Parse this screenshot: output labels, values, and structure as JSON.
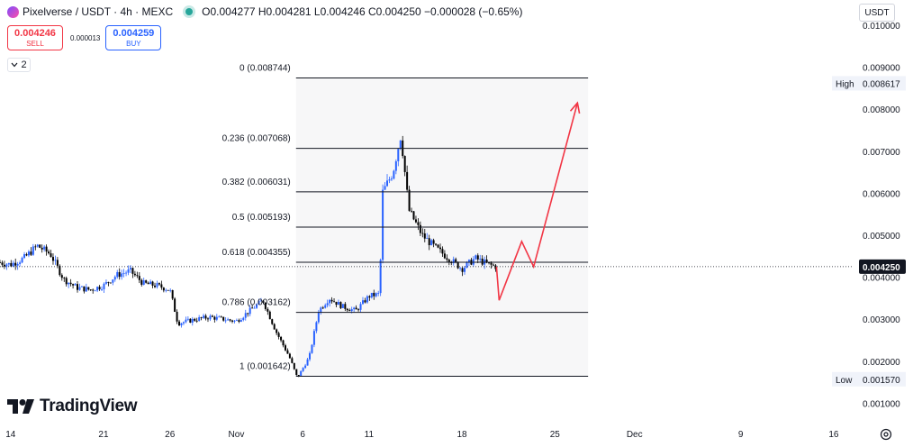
{
  "header": {
    "symbol": "Pixelverse / USDT · 4h · MEXC",
    "ohlc": "O0.004277 H0.004281 L0.004246 C0.004250 −0.000028 (−0.65%)"
  },
  "trade": {
    "sell_price": "0.004246",
    "sell_label": "SELL",
    "spread": "0.000013",
    "buy_price": "0.004259",
    "buy_label": "BUY"
  },
  "indicators_count": "2",
  "currency": "USDT",
  "branding": "TradingView",
  "chart_data": {
    "type": "candlestick",
    "y_axis": {
      "range": [
        0.0006,
        0.0106
      ],
      "ticks": [
        "0.010000",
        "0.009000",
        "0.008000",
        "0.007000",
        "0.006000",
        "0.005000",
        "0.004000",
        "0.003000",
        "0.002000",
        "0.001000"
      ],
      "tick_values": [
        0.01,
        0.009,
        0.008,
        0.007,
        0.006,
        0.005,
        0.004,
        0.003,
        0.002,
        0.001
      ]
    },
    "x_axis": {
      "labels": [
        {
          "label": "14",
          "day": 14
        },
        {
          "label": "21",
          "day": 21
        },
        {
          "label": "26",
          "day": 26
        },
        {
          "label": "Nov",
          "day": 31
        },
        {
          "label": "6",
          "day": 36
        },
        {
          "label": "11",
          "day": 41
        },
        {
          "label": "18",
          "day": 48
        },
        {
          "label": "25",
          "day": 55
        },
        {
          "label": "Dec",
          "day": 61
        },
        {
          "label": "9",
          "day": 69
        },
        {
          "label": "16",
          "day": 76
        }
      ],
      "range": [
        13.2,
        77.5
      ]
    },
    "price_path": [
      [
        13.2,
        0.00435
      ],
      [
        14,
        0.0043
      ],
      [
        15,
        0.00445
      ],
      [
        16,
        0.00475
      ],
      [
        17,
        0.00455
      ],
      [
        18,
        0.00395
      ],
      [
        19,
        0.00375
      ],
      [
        20,
        0.0037
      ],
      [
        21,
        0.0038
      ],
      [
        22,
        0.00405
      ],
      [
        23,
        0.00415
      ],
      [
        24,
        0.00385
      ],
      [
        25,
        0.0038
      ],
      [
        26,
        0.0037
      ],
      [
        26.6,
        0.0029
      ],
      [
        28,
        0.003
      ],
      [
        29,
        0.00305
      ],
      [
        30,
        0.003
      ],
      [
        31,
        0.00295
      ],
      [
        32,
        0.0032
      ],
      [
        33,
        0.00345
      ],
      [
        34,
        0.0027
      ],
      [
        35,
        0.0021
      ],
      [
        35.6,
        0.0016
      ],
      [
        36.5,
        0.0021
      ],
      [
        37.2,
        0.0032
      ],
      [
        38,
        0.0035
      ],
      [
        39,
        0.0033
      ],
      [
        40,
        0.0032
      ],
      [
        41,
        0.00355
      ],
      [
        41.8,
        0.0036
      ],
      [
        42,
        0.006
      ],
      [
        42.8,
        0.0065
      ],
      [
        43.4,
        0.0074
      ],
      [
        44,
        0.0056
      ],
      [
        45,
        0.005
      ],
      [
        46,
        0.0047
      ],
      [
        47,
        0.00445
      ],
      [
        48,
        0.0042
      ],
      [
        49,
        0.00445
      ],
      [
        50,
        0.0043
      ],
      [
        50.6,
        0.00425
      ]
    ],
    "projection": [
      [
        50.6,
        0.00425
      ],
      [
        50.8,
        0.00345
      ],
      [
        52.5,
        0.00485
      ],
      [
        53.4,
        0.00425
      ],
      [
        56.7,
        0.00815
      ]
    ],
    "fib_levels": [
      {
        "label": "0 (0.008744)",
        "value": 0.008744
      },
      {
        "label": "0.236 (0.007068)",
        "value": 0.007068
      },
      {
        "label": "0.382 (0.006031)",
        "value": 0.006031
      },
      {
        "label": "0.5 (0.005193)",
        "value": 0.005193
      },
      {
        "label": "0.618 (0.004355)",
        "value": 0.004355
      },
      {
        "label": "0.786 (0.003162)",
        "value": 0.003162
      },
      {
        "label": "1 (0.001642)",
        "value": 0.001642
      }
    ],
    "fib_x_range": [
      35.5,
      57.5
    ],
    "last_price": {
      "label": "0.004250",
      "value": 0.00425
    },
    "high": {
      "label": "High",
      "value": 0.008617,
      "value_label": "0.008617"
    },
    "low": {
      "label": "Low",
      "value": 0.00157,
      "value_label": "0.001570"
    },
    "colors": {
      "up": "#2962ff",
      "down": "#000000",
      "projection": "#f23645",
      "fib": "#131722",
      "axis_text": "#131722"
    }
  }
}
